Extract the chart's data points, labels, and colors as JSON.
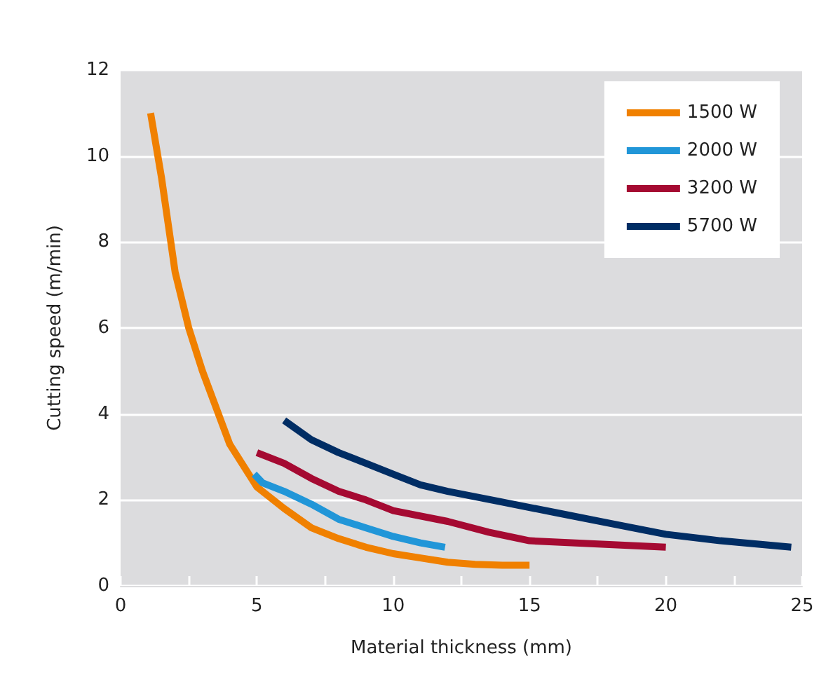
{
  "chart_data": {
    "type": "line",
    "xlabel": "Material thickness (mm)",
    "ylabel": "Cutting speed (m/min)",
    "xlim": [
      0,
      25
    ],
    "xticks": [
      0,
      {
        "value": 2.5,
        "label": null
      },
      5,
      {
        "value": 7.5,
        "label": null
      },
      10,
      {
        "value": 12.5,
        "label": null
      },
      15,
      {
        "value": 17.5,
        "label": null
      },
      20,
      {
        "value": 22.5,
        "label": null
      },
      25
    ],
    "ylim": [
      0,
      12
    ],
    "yticks": [
      0,
      2,
      4,
      6,
      8,
      10,
      12
    ],
    "grid": "y",
    "legend": "top right",
    "marker": "none",
    "line_style": "solid",
    "series": [
      {
        "name": "1500 W",
        "color": "#f08000",
        "x": [
          1.1,
          1.5,
          2,
          2.5,
          3,
          4,
          5,
          6,
          7,
          8,
          9,
          10,
          11,
          12,
          13,
          14,
          15
        ],
        "values": [
          11,
          9.5,
          7.3,
          6,
          5,
          3.3,
          2.3,
          1.8,
          1.35,
          1.1,
          0.9,
          0.75,
          0.65,
          0.55,
          0.5,
          0.48,
          0.48
        ]
      },
      {
        "name": "2000 W",
        "color": "#2196d8",
        "x": [
          4.9,
          5.2,
          6,
          7,
          8,
          9,
          10,
          11,
          11.9
        ],
        "values": [
          2.6,
          2.4,
          2.2,
          1.9,
          1.55,
          1.35,
          1.15,
          1.0,
          0.9
        ]
      },
      {
        "name": "3200 W",
        "color": "#a50a32",
        "x": [
          5,
          6,
          7,
          8,
          9,
          10,
          12,
          13.5,
          15,
          20
        ],
        "values": [
          3.1,
          2.85,
          2.5,
          2.2,
          2.0,
          1.75,
          1.5,
          1.25,
          1.05,
          0.9
        ]
      },
      {
        "name": "5700 W",
        "color": "#002d64",
        "x": [
          6,
          7,
          8,
          9,
          10,
          11,
          12,
          14,
          16,
          18,
          20,
          22,
          24.6
        ],
        "values": [
          3.85,
          3.4,
          3.1,
          2.85,
          2.6,
          2.35,
          2.2,
          1.95,
          1.7,
          1.45,
          1.2,
          1.05,
          0.9
        ]
      }
    ]
  }
}
